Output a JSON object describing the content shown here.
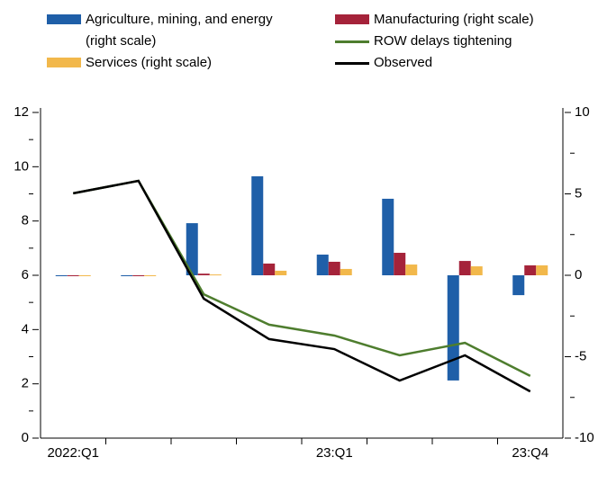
{
  "chart_data": {
    "type": "bar",
    "categories": [
      "2022:Q1",
      null,
      null,
      null,
      "23:Q1",
      null,
      null,
      "23:Q4"
    ],
    "series": [
      {
        "name": "Agriculture, mining, and energy (right scale)",
        "color": "#1f5fa8",
        "axis": "y2",
        "values": [
          0,
          0,
          3.2,
          6.08,
          1.27,
          4.7,
          -6.46,
          -1.22
        ]
      },
      {
        "name": "Manufacturing (right scale)",
        "color": "#a5233a",
        "axis": "y2",
        "values": [
          0,
          0,
          0.1,
          0.72,
          0.83,
          1.38,
          0.88,
          0.61
        ]
      },
      {
        "name": "Services (right scale)",
        "color": "#f2b84b",
        "axis": "y2",
        "values": [
          0,
          0,
          0.05,
          0.28,
          0.39,
          0.66,
          0.55,
          0.61
        ]
      },
      {
        "name": "ROW delays tightening",
        "color": "#4e7d2e",
        "type": "line",
        "values": [
          9.02,
          9.48,
          5.3,
          4.18,
          3.78,
          3.05,
          3.51,
          2.29
        ]
      },
      {
        "name": "Observed",
        "color": "#000000",
        "type": "line",
        "values": [
          9.02,
          9.48,
          5.14,
          3.65,
          3.28,
          2.12,
          3.05,
          1.72
        ]
      }
    ],
    "ylim": [
      0,
      12
    ],
    "yticks": [
      0,
      2,
      4,
      6,
      8,
      10,
      12
    ],
    "yminor_ticks": [
      1,
      3,
      5,
      7,
      9,
      11
    ],
    "y2lim": [
      -10,
      10
    ],
    "y2ticks": [
      -10,
      -5,
      0,
      5,
      10
    ],
    "y2minor_ticks": [
      -7.5,
      -2.5,
      2.5,
      7.5
    ]
  }
}
